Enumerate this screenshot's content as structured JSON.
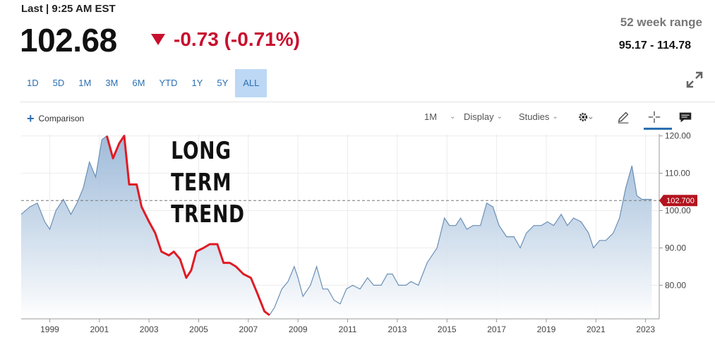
{
  "quote": {
    "status_label": "Last | 9:25 AM EST",
    "price": "102.68",
    "change": "-0.73 (-0.71%)",
    "range_label": "52 week range",
    "range_value": "95.17 - 114.78"
  },
  "time_ranges": [
    "1D",
    "5D",
    "1M",
    "3M",
    "6M",
    "YTD",
    "1Y",
    "5Y",
    "ALL"
  ],
  "active_range": "ALL",
  "toolbar": {
    "comparison": "Comparison",
    "interval": "1M",
    "display": "Display",
    "studies": "Studies"
  },
  "annotation": [
    "LONG",
    "TERM",
    "TREND"
  ],
  "colors": {
    "down": "#c8102e",
    "line": "#6a8fb5",
    "trend": "#e01b24",
    "accent": "#2b6fb3"
  },
  "chart_data": {
    "type": "area",
    "x_tick_labels": [
      "1999",
      "2001",
      "2003",
      "2005",
      "2007",
      "2009",
      "2011",
      "2013",
      "2015",
      "2017",
      "2019",
      "2021",
      "2023"
    ],
    "y_tick_labels": [
      "120.00",
      "110.00",
      "100.00",
      "90.00",
      "80.00"
    ],
    "ylim": [
      71,
      120.5
    ],
    "last_value_label": "102.700",
    "last_value": 102.7,
    "series": [
      {
        "x": [
          1997.85,
          1998.2,
          1998.5,
          1998.8,
          1999.0,
          1999.25,
          1999.55,
          1999.85,
          2000.1,
          2000.35,
          2000.6,
          2000.85,
          2001.1,
          2001.3,
          2001.55,
          2001.8,
          2002.0,
          2002.2,
          2002.5,
          2002.7,
          2003.0,
          2003.25,
          2003.5,
          2003.8,
          2004.0,
          2004.25,
          2004.5,
          2004.7,
          2004.9,
          2005.2,
          2005.45,
          2005.75,
          2006.0,
          2006.25,
          2006.5,
          2006.8,
          2007.1,
          2007.35,
          2007.65,
          2007.85,
          2008.05,
          2008.35,
          2008.6,
          2008.85,
          2009.0,
          2009.2,
          2009.5,
          2009.75,
          2010.0,
          2010.2,
          2010.45,
          2010.7,
          2010.95,
          2011.2,
          2011.5,
          2011.8,
          2012.05,
          2012.35,
          2012.6,
          2012.8,
          2013.05,
          2013.35,
          2013.55,
          2013.85,
          2014.2,
          2014.6,
          2014.9,
          2015.1,
          2015.35,
          2015.55,
          2015.8,
          2016.05,
          2016.35,
          2016.6,
          2016.85,
          2017.1,
          2017.4,
          2017.7,
          2017.95,
          2018.2,
          2018.5,
          2018.8,
          2019.05,
          2019.3,
          2019.6,
          2019.85,
          2020.1,
          2020.4,
          2020.7,
          2020.9,
          2021.15,
          2021.4,
          2021.7,
          2021.95,
          2022.2,
          2022.45,
          2022.65,
          2022.85,
          2023.1,
          2023.25
        ],
        "values": [
          99,
          101,
          102,
          97,
          95,
          100,
          103,
          99,
          102,
          106,
          113,
          109,
          119,
          120,
          114,
          118,
          120,
          107,
          107,
          101,
          97,
          94,
          89,
          88,
          89,
          87,
          82,
          84,
          89,
          90,
          91,
          91,
          86,
          86,
          85,
          83,
          82,
          78,
          73,
          72,
          74,
          79,
          81,
          85,
          82,
          77,
          80,
          85,
          79,
          79,
          76,
          75,
          79,
          80,
          79,
          82,
          80,
          80,
          83,
          83,
          80,
          80,
          81,
          80,
          86,
          90,
          98,
          96,
          96,
          98,
          95,
          96,
          96,
          102,
          101,
          96,
          93,
          93,
          90,
          94,
          96,
          96,
          97,
          96,
          99,
          96,
          98,
          97,
          94,
          90,
          92,
          92,
          94,
          98,
          106,
          112,
          104,
          103,
          103,
          103
        ]
      }
    ],
    "trend_segment": {
      "from_x": 2001.25,
      "to_x": 2007.95
    }
  }
}
